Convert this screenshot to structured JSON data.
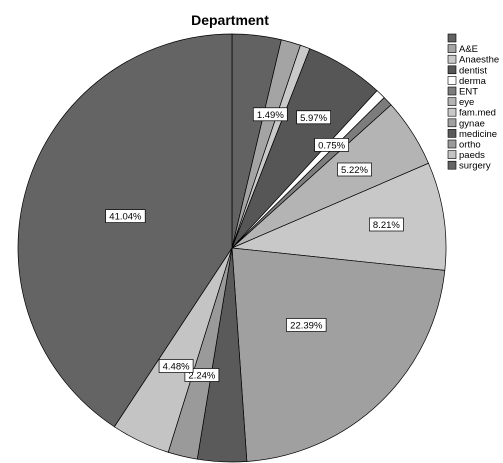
{
  "chart_data": {
    "type": "pie",
    "title": "Department",
    "legend_position": "right",
    "slices": [
      {
        "name": "",
        "value": 3.73,
        "color": "#626262"
      },
      {
        "name": "A&E",
        "value": 1.49,
        "color": "#a4a4a4",
        "label": "1.49%"
      },
      {
        "name": "Anaesthesia",
        "value": 0.75,
        "color": "#c9c9c9"
      },
      {
        "name": "dentist",
        "value": 5.97,
        "color": "#565656",
        "label": "5.97%"
      },
      {
        "name": "derma",
        "value": 0.75,
        "color": "#ffffff",
        "label": "0.75%"
      },
      {
        "name": "ENT",
        "value": 0.75,
        "color": "#7c7c7c"
      },
      {
        "name": "eye",
        "value": 5.22,
        "color": "#b4b4b4",
        "label": "5.22%"
      },
      {
        "name": "fam.med",
        "value": 8.21,
        "color": "#c8c8c8",
        "label": "8.21%"
      },
      {
        "name": "gynae",
        "value": 22.39,
        "color": "#a0a0a0",
        "label": "22.39%"
      },
      {
        "name": "medicine",
        "value": 3.73,
        "color": "#5a5a5a"
      },
      {
        "name": "ortho",
        "value": 2.24,
        "color": "#9a9a9a",
        "label": "2.24%"
      },
      {
        "name": "paeds",
        "value": 4.48,
        "color": "#c4c4c4",
        "label": "4.48%"
      },
      {
        "name": "surgery",
        "value": 41.04,
        "color": "#646464",
        "label": "41.04%"
      }
    ],
    "legend": [
      {
        "text": "",
        "color": "#626262"
      },
      {
        "text": "A&E",
        "color": "#a4a4a4"
      },
      {
        "text": "Anaesthe",
        "color": "#c9c9c9"
      },
      {
        "text": "dentist",
        "color": "#565656"
      },
      {
        "text": "derma",
        "color": "#ffffff"
      },
      {
        "text": "ENT",
        "color": "#7c7c7c"
      },
      {
        "text": "eye",
        "color": "#b4b4b4"
      },
      {
        "text": "fam.med",
        "color": "#c8c8c8"
      },
      {
        "text": "gynae",
        "color": "#a0a0a0"
      },
      {
        "text": "medicine",
        "color": "#5a5a5a"
      },
      {
        "text": "ortho",
        "color": "#9a9a9a"
      },
      {
        "text": "paeds",
        "color": "#c4c4c4"
      },
      {
        "text": "surgery",
        "color": "#646464"
      }
    ]
  }
}
